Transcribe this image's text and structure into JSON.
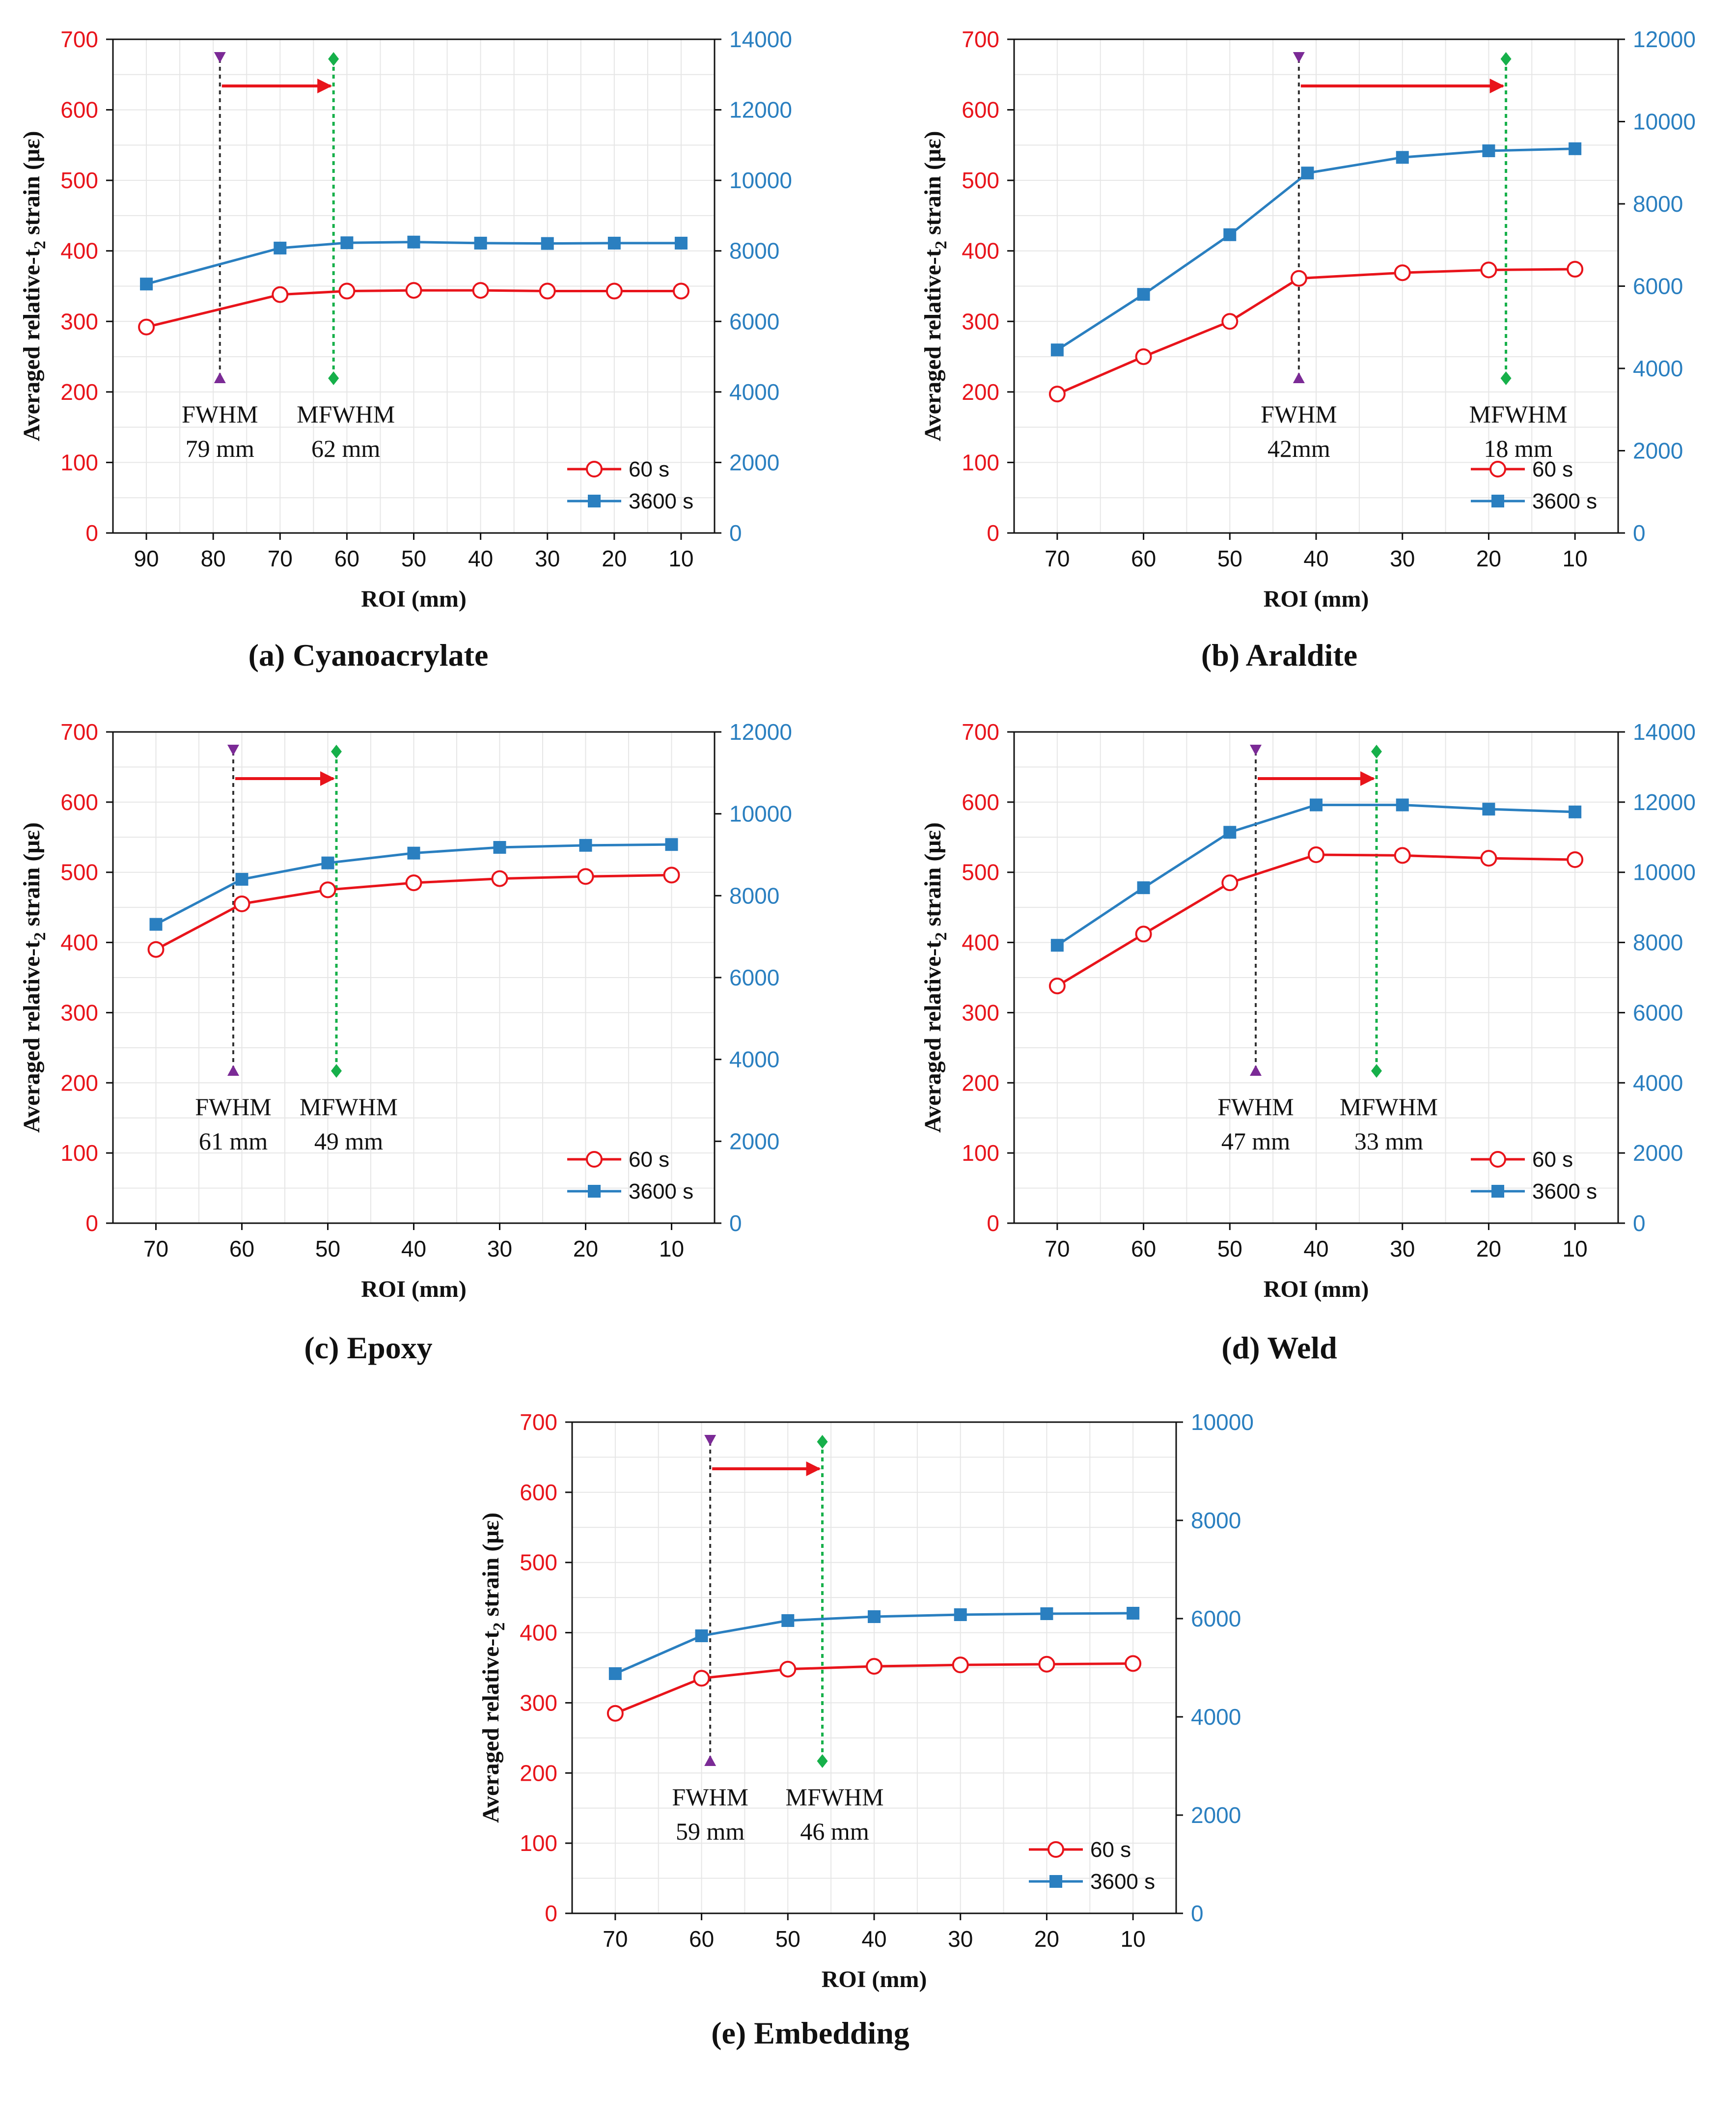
{
  "colors": {
    "series_60s": "#e8141b",
    "series_3600s": "#2a7fc0",
    "fwhm_marker": "#7b2a96",
    "mfwhm_marker": "#16b04a",
    "arrow": "#e8141b",
    "grid": "#e6e6e6"
  },
  "chart_data": [
    {
      "type": "line",
      "panel": "a",
      "caption": "(a) Cyanoacrylate",
      "xlabel": "ROI (mm)",
      "ylabel": "Averaged relative-t",
      "ylabel_sub": "2",
      "ylabel_tail": " strain (με)",
      "x": [
        90,
        80,
        70,
        60,
        50,
        40,
        30,
        20,
        10
      ],
      "xticks": [
        "90",
        "80",
        "70",
        "60",
        "50",
        "40",
        "30",
        "20",
        "10"
      ],
      "xlim": [
        95,
        5
      ],
      "ylim_left": [
        0,
        700
      ],
      "yticks_left": [
        "0",
        "100",
        "200",
        "300",
        "400",
        "500",
        "600",
        "700"
      ],
      "ylim_right": [
        0,
        14000
      ],
      "yticks_right": [
        "0",
        "2000",
        "4000",
        "6000",
        "8000",
        "10000",
        "12000",
        "14000"
      ],
      "series": [
        {
          "name": "60 s",
          "axis": "left",
          "x": [
            90,
            70,
            60,
            50,
            40,
            30,
            20,
            10
          ],
          "values": [
            292,
            338,
            343,
            344,
            344,
            343,
            343,
            343
          ]
        },
        {
          "name": "3600 s",
          "axis": "right",
          "x": [
            90,
            70,
            60,
            50,
            40,
            30,
            20,
            10
          ],
          "values": [
            7060,
            8080,
            8230,
            8250,
            8220,
            8210,
            8220,
            8220
          ]
        }
      ],
      "markers": {
        "fwhm": {
          "x": 79,
          "label": "FWHM",
          "value": "79 mm"
        },
        "mfwhm": {
          "x": 62,
          "label": "MFWHM",
          "value": "62 mm"
        }
      }
    },
    {
      "type": "line",
      "panel": "b",
      "caption": "(b) Araldite",
      "xlabel": "ROI (mm)",
      "ylabel": "Averaged relative-t",
      "ylabel_sub": "2",
      "ylabel_tail": " strain (με)",
      "x": [
        70,
        60,
        50,
        40,
        30,
        20,
        10
      ],
      "xticks": [
        "70",
        "60",
        "50",
        "40",
        "30",
        "20",
        "10"
      ],
      "xlim": [
        75,
        5
      ],
      "ylim_left": [
        0,
        700
      ],
      "yticks_left": [
        "0",
        "100",
        "200",
        "300",
        "400",
        "500",
        "600",
        "700"
      ],
      "ylim_right": [
        0,
        12000
      ],
      "yticks_right": [
        "0",
        "2000",
        "4000",
        "6000",
        "8000",
        "10000",
        "12000"
      ],
      "series": [
        {
          "name": "60 s",
          "axis": "left",
          "x": [
            70,
            60,
            50,
            42,
            30,
            20,
            10
          ],
          "values": [
            197,
            250,
            300,
            361,
            369,
            373,
            374
          ]
        },
        {
          "name": "3600 s",
          "axis": "right",
          "x": [
            70,
            60,
            50,
            41,
            30,
            20,
            10
          ],
          "values": [
            4450,
            5800,
            7250,
            8750,
            9130,
            9290,
            9340
          ]
        }
      ],
      "markers": {
        "fwhm": {
          "x": 42,
          "label": "FWHM",
          "value": "42mm"
        },
        "mfwhm": {
          "x": 18,
          "label": "MFWHM",
          "value": "18 mm"
        }
      }
    },
    {
      "type": "line",
      "panel": "c",
      "caption": "(c) Epoxy",
      "xlabel": "ROI (mm)",
      "ylabel": "Averaged relative-t",
      "ylabel_sub": "2",
      "ylabel_tail": " strain (με)",
      "x": [
        70,
        60,
        50,
        40,
        30,
        20,
        10
      ],
      "xticks": [
        "70",
        "60",
        "50",
        "40",
        "30",
        "20",
        "10"
      ],
      "xlim": [
        75,
        5
      ],
      "ylim_left": [
        0,
        700
      ],
      "yticks_left": [
        "0",
        "100",
        "200",
        "300",
        "400",
        "500",
        "600",
        "700"
      ],
      "ylim_right": [
        0,
        12000
      ],
      "yticks_right": [
        "0",
        "2000",
        "4000",
        "6000",
        "8000",
        "10000",
        "12000"
      ],
      "series": [
        {
          "name": "60 s",
          "axis": "left",
          "x": [
            70,
            60,
            50,
            40,
            30,
            20,
            10
          ],
          "values": [
            390,
            455,
            475,
            485,
            491,
            494,
            496
          ]
        },
        {
          "name": "3600 s",
          "axis": "right",
          "x": [
            70,
            60,
            50,
            40,
            30,
            20,
            10
          ],
          "values": [
            7300,
            8400,
            8800,
            9040,
            9180,
            9230,
            9250
          ]
        }
      ],
      "markers": {
        "fwhm": {
          "x": 61,
          "label": "FWHM",
          "value": "61 mm"
        },
        "mfwhm": {
          "x": 49,
          "label": "MFWHM",
          "value": "49 mm"
        }
      }
    },
    {
      "type": "line",
      "panel": "d",
      "caption": "(d) Weld",
      "xlabel": "ROI (mm)",
      "ylabel": "Averaged relative-t",
      "ylabel_sub": "2",
      "ylabel_tail": " strain (με)",
      "x": [
        70,
        60,
        50,
        40,
        30,
        20,
        10
      ],
      "xticks": [
        "70",
        "60",
        "50",
        "40",
        "30",
        "20",
        "10"
      ],
      "xlim": [
        75,
        5
      ],
      "ylim_left": [
        0,
        700
      ],
      "yticks_left": [
        "0",
        "100",
        "200",
        "300",
        "400",
        "500",
        "600",
        "700"
      ],
      "ylim_right": [
        0,
        14000
      ],
      "yticks_right": [
        "0",
        "2000",
        "4000",
        "6000",
        "8000",
        "10000",
        "12000",
        "14000"
      ],
      "series": [
        {
          "name": "60 s",
          "axis": "left",
          "x": [
            70,
            60,
            50,
            40,
            30,
            20,
            10
          ],
          "values": [
            338,
            412,
            485,
            525,
            524,
            520,
            518
          ]
        },
        {
          "name": "3600 s",
          "axis": "right",
          "x": [
            70,
            60,
            50,
            40,
            30,
            20,
            10
          ],
          "values": [
            7920,
            9560,
            11140,
            11920,
            11920,
            11800,
            11720
          ]
        }
      ],
      "markers": {
        "fwhm": {
          "x": 47,
          "label": "FWHM",
          "value": "47 mm"
        },
        "mfwhm": {
          "x": 33,
          "label": "MFWHM",
          "value": "33 mm"
        }
      }
    },
    {
      "type": "line",
      "panel": "e",
      "caption": "(e) Embedding",
      "xlabel": "ROI (mm)",
      "ylabel": "Averaged relative-t",
      "ylabel_sub": "2",
      "ylabel_tail": " strain (με)",
      "x": [
        70,
        60,
        50,
        40,
        30,
        20,
        10
      ],
      "xticks": [
        "70",
        "60",
        "50",
        "40",
        "30",
        "20",
        "10"
      ],
      "xlim": [
        75,
        5
      ],
      "ylim_left": [
        0,
        700
      ],
      "yticks_left": [
        "0",
        "100",
        "200",
        "300",
        "400",
        "500",
        "600",
        "700"
      ],
      "ylim_right": [
        0,
        10000
      ],
      "yticks_right": [
        "0",
        "2000",
        "4000",
        "6000",
        "8000",
        "10000"
      ],
      "series": [
        {
          "name": "60 s",
          "axis": "left",
          "x": [
            70,
            60,
            50,
            40,
            30,
            20,
            10
          ],
          "values": [
            285,
            335,
            348,
            352,
            354,
            355,
            356
          ]
        },
        {
          "name": "3600 s",
          "axis": "right",
          "x": [
            70,
            60,
            50,
            40,
            30,
            20,
            10
          ],
          "values": [
            4880,
            5650,
            5960,
            6040,
            6080,
            6100,
            6110
          ]
        }
      ],
      "markers": {
        "fwhm": {
          "x": 59,
          "label": "FWHM",
          "value": "59 mm"
        },
        "mfwhm": {
          "x": 46,
          "label": "MFWHM",
          "value": "46 mm"
        }
      }
    }
  ]
}
